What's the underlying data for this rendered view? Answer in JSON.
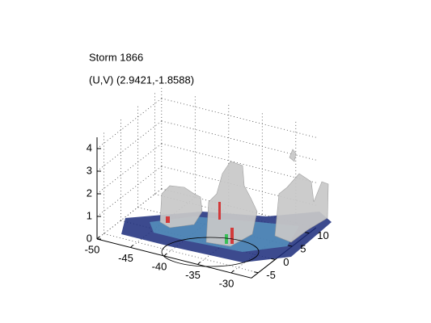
{
  "chart_data": {
    "type": "isosurface3d",
    "title": "Storm 1866",
    "subtitle": "(U,V) (2.9421,-1.8588)",
    "xlim": [
      -50,
      -27
    ],
    "xticks": [
      -50,
      -45,
      -40,
      -35,
      -30
    ],
    "ylim": [
      -7,
      12
    ],
    "yticks": [
      -5,
      0,
      5,
      10
    ],
    "zlim": [
      0,
      4.5
    ],
    "zticks": [
      0,
      1,
      2,
      3,
      4
    ],
    "grid": true
  }
}
